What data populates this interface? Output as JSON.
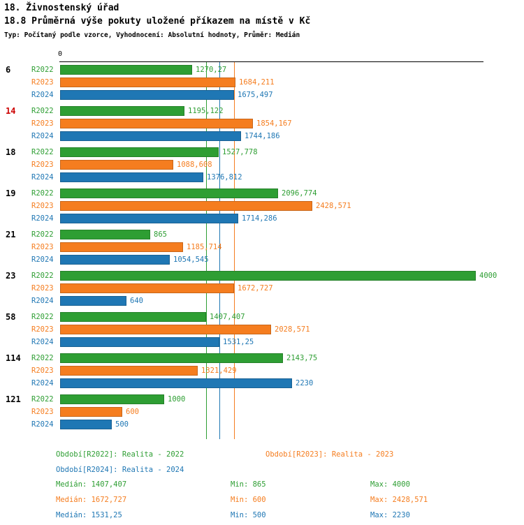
{
  "header": {
    "title": "18. Živnostenský úřad",
    "subtitle": "18.8 Průměrná výše pokuty uložené příkazem na místě v Kč",
    "meta": "Typ: Počítaný podle vzorce, Vyhodnocení: Absolutní hodnoty, Průměr: Medián"
  },
  "chart_data": {
    "type": "bar",
    "orientation": "horizontal",
    "axis": {
      "zero_label": "0",
      "xlim": [
        0,
        4000
      ],
      "grid": false
    },
    "categories": [
      {
        "label": "6",
        "color": "#000000"
      },
      {
        "label": "14",
        "color": "#cc0000"
      },
      {
        "label": "18",
        "color": "#000000"
      },
      {
        "label": "19",
        "color": "#000000"
      },
      {
        "label": "21",
        "color": "#000000"
      },
      {
        "label": "23",
        "color": "#000000"
      },
      {
        "label": "58",
        "color": "#000000"
      },
      {
        "label": "114",
        "color": "#000000"
      },
      {
        "label": "121",
        "color": "#000000"
      }
    ],
    "series": [
      {
        "name": "R2022",
        "color": "#2e9e33",
        "values": [
          1270.27,
          1195.122,
          1527.778,
          2096.774,
          865,
          4000,
          1407.407,
          2143.75,
          1000
        ],
        "labels": [
          "1270,27",
          "1195,122",
          "1527,778",
          "2096,774",
          "865",
          "4000",
          "1407,407",
          "2143,75",
          "1000"
        ]
      },
      {
        "name": "R2023",
        "color": "#f57d1f",
        "values": [
          1684.211,
          1854.167,
          1088.608,
          2428.571,
          1185.714,
          1672.727,
          2028.571,
          1321.429,
          600
        ],
        "labels": [
          "1684,211",
          "1854,167",
          "1088,608",
          "2428,571",
          "1185,714",
          "1672,727",
          "2028,571",
          "1321,429",
          "600"
        ]
      },
      {
        "name": "R2024",
        "color": "#1f77b4",
        "values": [
          1675.497,
          1744.186,
          1376.812,
          1714.286,
          1054.545,
          640,
          1531.25,
          2230,
          500
        ],
        "labels": [
          "1675,497",
          "1744,186",
          "1376,812",
          "1714,286",
          "1054,545",
          "640",
          "1531,25",
          "2230",
          "500"
        ]
      }
    ],
    "reference_lines": [
      {
        "name": "median-r2022",
        "value": 1407.407,
        "color": "#2e9e33"
      },
      {
        "name": "median-r2024",
        "value": 1531.25,
        "color": "#1f77b4"
      },
      {
        "name": "median-r2023",
        "value": 1672.727,
        "color": "#f57d1f"
      }
    ]
  },
  "legend": {
    "items": [
      {
        "label": "Období[R2022]: Realita - 2022",
        "color": "#2e9e33"
      },
      {
        "label": "Období[R2023]: Realita - 2023",
        "color": "#f57d1f"
      },
      {
        "label": "Období[R2024]: Realita - 2024",
        "color": "#1f77b4"
      }
    ]
  },
  "stats": {
    "rows": [
      {
        "color": "#2e9e33",
        "median": "Medián: 1407,407",
        "min": "Min: 865",
        "max": "Max: 4000"
      },
      {
        "color": "#f57d1f",
        "median": "Medián: 1672,727",
        "min": "Min: 600",
        "max": "Max: 2428,571"
      },
      {
        "color": "#1f77b4",
        "median": "Medián: 1531,25",
        "min": "Min: 500",
        "max": "Max: 2230"
      }
    ]
  }
}
